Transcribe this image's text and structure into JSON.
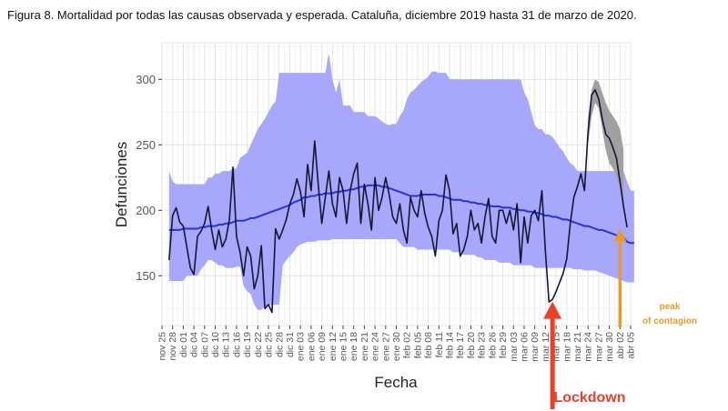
{
  "caption": "Figura 8. Mortalidad por todas las causas observada y esperada. Cataluña, diciembre 2019 hasta 31 de marzo de 2020.",
  "colors": {
    "band": "#a7a7fb",
    "expected_line": "#2a2fe0",
    "observed_line": "#161636",
    "forecast_band": "#a0a0a0",
    "panel": "#ffffff",
    "grid": "#e4e4e4",
    "lockdown": "#e8402a",
    "peak": "#e89b2a"
  },
  "chart_data": {
    "type": "line",
    "xlabel": "Fecha",
    "ylabel": "Defunciones",
    "ylim": [
      112,
      328
    ],
    "y_ticks": [
      150,
      200,
      250,
      300
    ],
    "grid": true,
    "x_tick_labels": [
      "nov 25",
      "nov 28",
      "dic 01",
      "dic 04",
      "dic 07",
      "dic 10",
      "dic 13",
      "dic 16",
      "dic 19",
      "dic 22",
      "dic 25",
      "dic 28",
      "dic 31",
      "ene 03",
      "ene 06",
      "ene 09",
      "ene 12",
      "ene 15",
      "ene 18",
      "ene 21",
      "ene 24",
      "ene 27",
      "ene 30",
      "feb 02",
      "feb 05",
      "feb 08",
      "feb 11",
      "feb 14",
      "feb 17",
      "feb 20",
      "feb 23",
      "feb 26",
      "feb 29",
      "mar 03",
      "mar 06",
      "mar 09",
      "mar 12",
      "mar 15",
      "mar 18",
      "mar 21",
      "mar 24",
      "mar 27",
      "mar 30",
      "abr 02",
      "abr 05"
    ],
    "x_ticks_start": "2019-11-25",
    "x_tick_step_days": 3,
    "x_range": [
      "2019-11-25",
      "2020-04-05"
    ],
    "start_date": "2019-11-27",
    "series": [
      {
        "name": "",
        "role": "observed",
        "values": [
          162,
          196,
          202,
          191,
          188,
          172,
          156,
          151,
          180,
          184,
          190,
          203,
          185,
          170,
          185,
          172,
          178,
          193,
          233,
          180,
          168,
          150,
          172,
          165,
          140,
          150,
          173,
          125,
          128,
          122,
          186,
          178,
          185,
          193,
          205,
          212,
          224,
          214,
          195,
          235,
          215,
          253,
          220,
          190,
          210,
          230,
          205,
          195,
          225,
          215,
          190,
          215,
          228,
          236,
          190,
          220,
          205,
          185,
          225,
          200,
          210,
          225,
          212,
          195,
          190,
          205,
          185,
          175,
          210,
          200,
          195,
          215,
          198,
          187,
          180,
          165,
          192,
          200,
          227,
          215,
          182,
          190,
          165,
          170,
          180,
          200,
          185,
          190,
          175,
          195,
          209,
          180,
          175,
          200,
          200,
          190,
          200,
          185,
          205,
          160,
          195,
          175,
          196,
          200,
          192,
          215,
          168,
          130,
          132,
          138,
          145,
          152,
          163,
          190,
          210,
          218,
          228,
          215,
          260,
          288,
          292,
          285,
          270,
          258,
          255,
          248,
          240,
          222,
          203,
          187
        ],
        "forecast_band": {
          "start_index": 118,
          "lower": [
            250,
            272,
            282,
            278,
            262,
            246,
            236,
            232,
            226,
            218,
            198
          ],
          "upper": [
            270,
            292,
            300,
            298,
            290,
            282,
            276,
            272,
            268,
            262,
            246
          ]
        }
      },
      {
        "name": "",
        "role": "expected",
        "values": [
          185,
          185,
          185,
          185,
          186,
          186,
          186,
          186,
          186,
          187,
          187,
          188,
          188,
          188,
          189,
          189,
          190,
          190,
          191,
          192,
          192,
          192,
          193,
          194,
          194,
          195,
          196,
          197,
          198,
          199,
          200,
          201,
          202,
          203,
          204,
          206,
          207,
          208,
          210,
          210,
          211,
          211,
          212,
          212,
          213,
          213,
          213,
          214,
          214,
          215,
          215,
          216,
          216,
          217,
          218,
          218,
          219,
          219,
          219,
          219,
          218,
          218,
          217,
          216,
          215,
          214,
          213,
          212,
          211,
          211,
          211,
          212,
          212,
          212,
          212,
          212,
          211,
          211,
          210,
          209,
          208,
          208,
          208,
          207,
          207,
          206,
          206,
          205,
          205,
          204,
          204,
          203,
          203,
          203,
          202,
          202,
          202,
          201,
          201,
          200,
          200,
          199,
          199,
          198,
          198,
          197,
          196,
          196,
          195,
          195,
          194,
          193,
          193,
          192,
          191,
          190,
          189,
          188,
          188,
          187,
          186,
          185,
          185,
          184,
          183,
          182,
          181,
          180,
          179,
          176,
          175,
          175
        ],
        "band_lower": [
          146,
          146,
          146,
          146,
          146,
          150,
          150,
          150,
          150,
          155,
          158,
          162,
          162,
          160,
          158,
          158,
          156,
          156,
          156,
          157,
          157,
          142,
          138,
          136,
          128,
          124,
          124,
          127,
          127,
          128,
          128,
          128,
          158,
          162,
          165,
          168,
          172,
          174,
          175,
          176,
          176,
          176,
          177,
          177,
          177,
          177,
          178,
          178,
          178,
          178,
          178,
          178,
          178,
          178,
          178,
          178,
          178,
          178,
          178,
          178,
          178,
          178,
          178,
          178,
          178,
          175,
          172,
          172,
          172,
          172,
          170,
          170,
          170,
          170,
          170,
          170,
          170,
          170,
          170,
          170,
          168,
          168,
          168,
          166,
          166,
          166,
          166,
          164,
          164,
          162,
          162,
          162,
          162,
          160,
          160,
          160,
          160,
          158,
          158,
          158,
          158,
          158,
          158,
          156,
          156,
          156,
          156,
          156,
          156,
          156,
          156,
          156,
          156,
          156,
          155,
          155,
          155,
          154,
          154,
          154,
          154,
          153,
          152,
          151,
          150,
          149,
          148,
          147,
          146,
          145,
          145,
          145
        ],
        "band_upper": [
          230,
          222,
          220,
          220,
          220,
          220,
          220,
          220,
          220,
          220,
          220,
          225,
          225,
          228,
          228,
          230,
          230,
          230,
          232,
          232,
          240,
          242,
          244,
          250,
          256,
          262,
          266,
          270,
          275,
          280,
          283,
          305,
          305,
          305,
          305,
          305,
          305,
          305,
          305,
          305,
          305,
          305,
          305,
          305,
          305,
          320,
          300,
          290,
          300,
          280,
          280,
          280,
          275,
          275,
          275,
          275,
          272,
          272,
          272,
          270,
          268,
          266,
          265,
          266,
          266,
          272,
          276,
          285,
          290,
          292,
          295,
          298,
          300,
          302,
          306,
          306,
          305,
          305,
          305,
          300,
          300,
          300,
          300,
          300,
          300,
          300,
          300,
          300,
          300,
          300,
          300,
          300,
          300,
          300,
          300,
          300,
          300,
          300,
          300,
          300,
          290,
          285,
          275,
          265,
          262,
          262,
          258,
          258,
          256,
          252,
          248,
          245,
          240,
          236,
          234,
          230,
          230,
          230,
          230,
          230,
          230,
          230,
          230,
          230,
          230,
          230,
          230,
          230,
          230,
          222,
          215,
          215
        ]
      }
    ],
    "annotations": [
      {
        "label": "peak\nof contagion",
        "target": "2020-04-02",
        "y": 186,
        "color": "#e89b2a"
      },
      {
        "label": "Lockdown",
        "target": "2020-03-14",
        "y": 131,
        "color": "#e8402a"
      }
    ]
  }
}
